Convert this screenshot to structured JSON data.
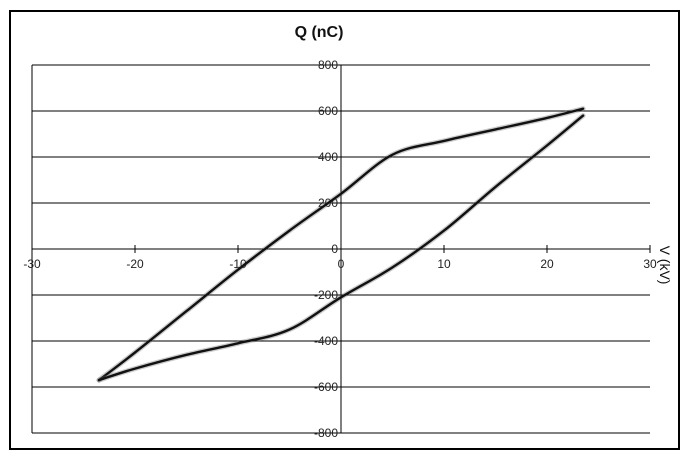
{
  "chart_data": {
    "type": "line",
    "title": "Q (nC)",
    "xlabel": "V (kV)",
    "ylabel": "Q (nC)",
    "xlim": [
      -30,
      30
    ],
    "ylim": [
      -800,
      800
    ],
    "x_ticks": [
      -30,
      -20,
      -10,
      0,
      10,
      20,
      30
    ],
    "y_ticks": [
      -800,
      -600,
      -400,
      -200,
      0,
      200,
      400,
      600,
      800
    ],
    "grid": "horizontal",
    "legend": "none",
    "series": [
      {
        "x": [
          -23.5,
          -20,
          -15,
          -10,
          -5,
          0,
          5,
          10,
          15,
          20,
          23.5
        ],
        "y": [
          -570,
          -450,
          -270,
          -90,
          80,
          240,
          410,
          470,
          520,
          570,
          610
        ]
      },
      {
        "x": [
          23.5,
          20,
          15,
          10,
          5,
          0,
          -5,
          -10,
          -15,
          -20,
          -23.5
        ],
        "y": [
          580,
          450,
          270,
          80,
          -80,
          -210,
          -350,
          -410,
          -460,
          -520,
          -570
        ]
      }
    ],
    "colors": {
      "trace": "#111111",
      "noise": "#666666",
      "grid": "#000000"
    }
  }
}
